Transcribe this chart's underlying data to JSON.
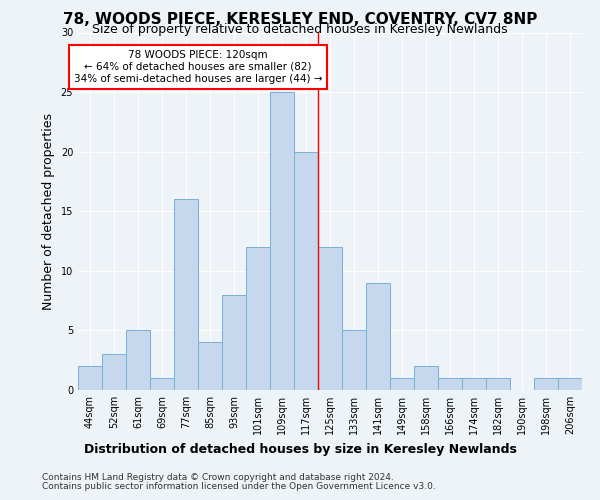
{
  "title": "78, WOODS PIECE, KERESLEY END, COVENTRY, CV7 8NP",
  "subtitle": "Size of property relative to detached houses in Keresley Newlands",
  "xlabel_bottom": "Distribution of detached houses by size in Keresley Newlands",
  "ylabel": "Number of detached properties",
  "footer1": "Contains HM Land Registry data © Crown copyright and database right 2024.",
  "footer2": "Contains public sector information licensed under the Open Government Licence v3.0.",
  "categories": [
    "44sqm",
    "52sqm",
    "61sqm",
    "69sqm",
    "77sqm",
    "85sqm",
    "93sqm",
    "101sqm",
    "109sqm",
    "117sqm",
    "125sqm",
    "133sqm",
    "141sqm",
    "149sqm",
    "158sqm",
    "166sqm",
    "174sqm",
    "182sqm",
    "190sqm",
    "198sqm",
    "206sqm"
  ],
  "values": [
    2,
    3,
    5,
    1,
    16,
    4,
    8,
    12,
    25,
    20,
    12,
    5,
    9,
    1,
    2,
    1,
    1,
    1,
    0,
    1,
    1
  ],
  "bar_color": "#c5d8ed",
  "bar_edge_color": "#7aafd4",
  "annotation_line1": "78 WOODS PIECE: 120sqm",
  "annotation_line2": "← 64% of detached houses are smaller (82)",
  "annotation_line3": "34% of semi-detached houses are larger (44) →",
  "annotation_box_color": "white",
  "annotation_box_edge_color": "red",
  "vline_x": 9.5,
  "vline_color": "red",
  "ylim": [
    0,
    30
  ],
  "yticks": [
    0,
    5,
    10,
    15,
    20,
    25,
    30
  ],
  "bg_color": "#eef3f8",
  "grid_color": "white",
  "title_fontsize": 11,
  "subtitle_fontsize": 9,
  "tick_fontsize": 7,
  "ylabel_fontsize": 9,
  "annotation_fontsize": 7.5,
  "footer_fontsize": 6.5
}
